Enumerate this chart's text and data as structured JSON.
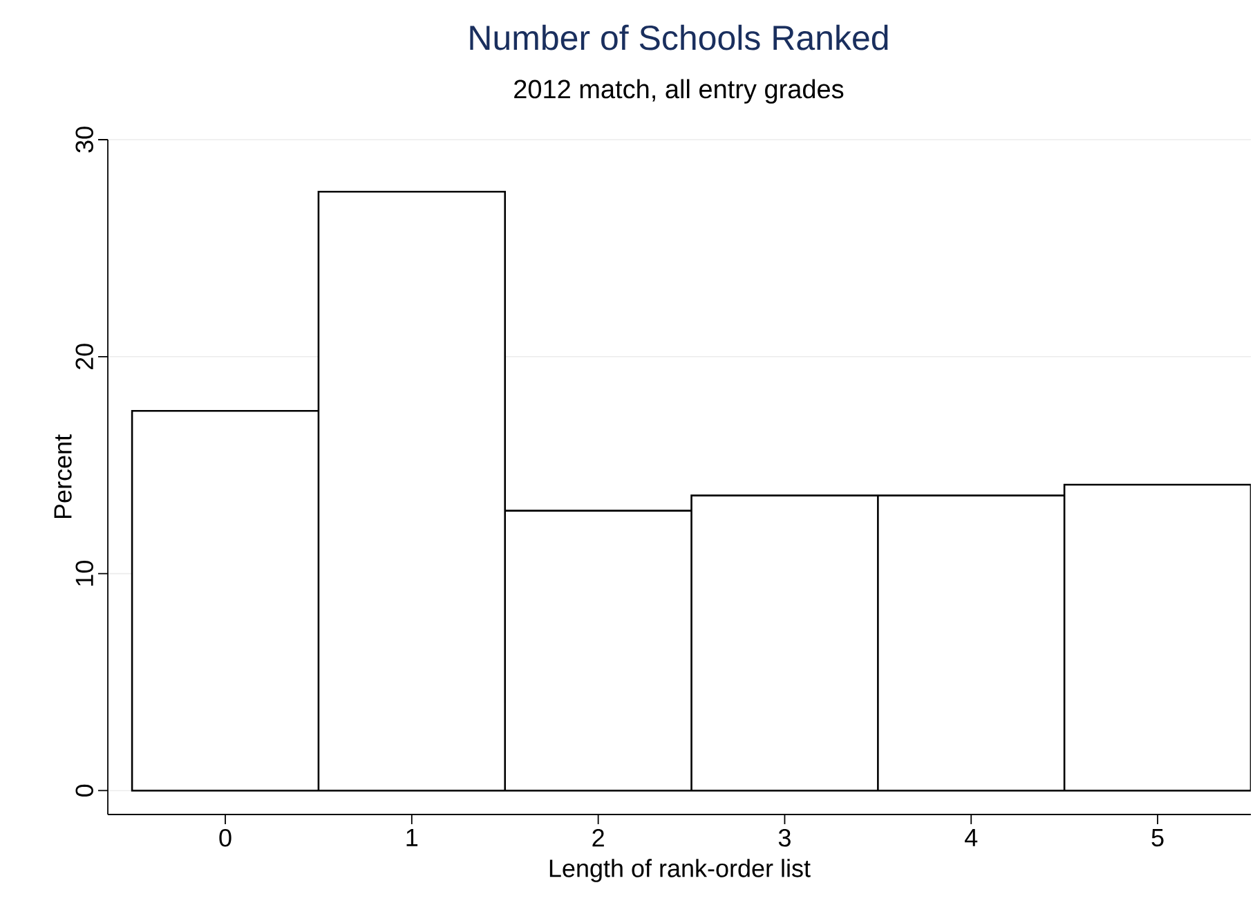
{
  "chart_data": {
    "type": "histogram",
    "title": "Number of Schools Ranked",
    "subtitle": "2012 match, all entry grades",
    "xlabel": "Length of rank-order list",
    "ylabel": "Percent",
    "bins": [
      -0.5,
      0.5,
      1.5,
      2.5,
      3.5,
      4.5,
      5.5
    ],
    "values": [
      17.5,
      27.6,
      12.9,
      13.6,
      13.6,
      14.1
    ],
    "color": "#ffffff",
    "xlim": [
      -0.63,
      5.5
    ],
    "ylim": [
      -1.1,
      30
    ],
    "xticks": [
      0,
      1,
      2,
      3,
      4,
      5
    ],
    "yticks": [
      0,
      10,
      20,
      30
    ],
    "grid": "y"
  }
}
